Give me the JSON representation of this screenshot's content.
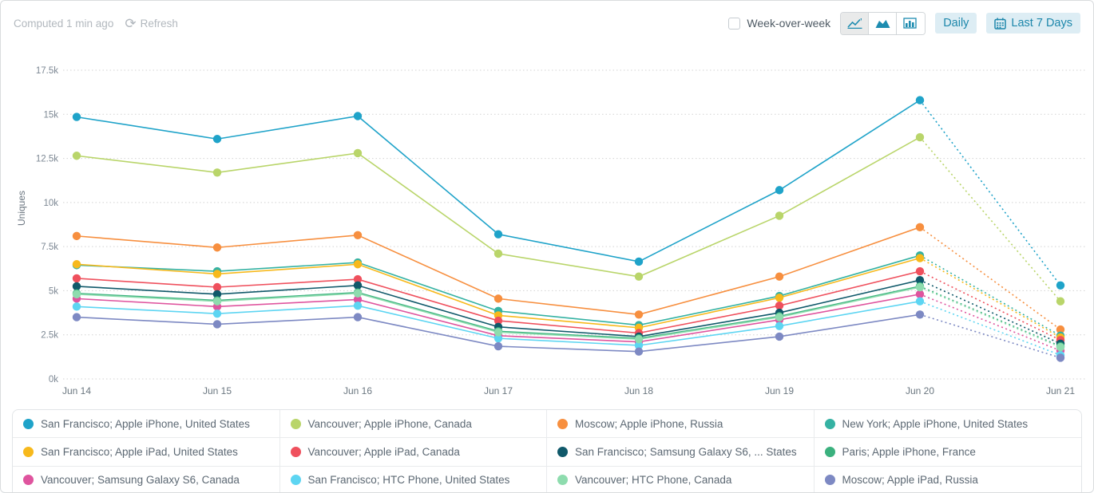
{
  "header": {
    "computed_text": "Computed 1 min ago",
    "refresh_label": "Refresh",
    "week_over_week_label": "Week-over-week",
    "daily_label": "Daily",
    "date_range_label": "Last 7 Days",
    "accent_color": "#1d87ab"
  },
  "chart_data": {
    "type": "line",
    "title": "",
    "xlabel": "",
    "ylabel": "Uniques",
    "ylim": [
      0,
      17500
    ],
    "grid": true,
    "legend_position": "bottom",
    "note": "segment from Jun 20 to Jun 21 drawn dotted (incomplete period)",
    "categories": [
      "Jun 14",
      "Jun 15",
      "Jun 16",
      "Jun 17",
      "Jun 18",
      "Jun 19",
      "Jun 20",
      "Jun 21"
    ],
    "ytick_labels": [
      "0k",
      "2.5k",
      "5k",
      "7.5k",
      "10k",
      "12.5k",
      "15k",
      "17.5k"
    ],
    "ytick_values": [
      0,
      2500,
      5000,
      7500,
      10000,
      12500,
      15000,
      17500
    ],
    "series": [
      {
        "name": "San Francisco; Apple iPhone, United States",
        "color": "#1fa3c9",
        "values": [
          14850,
          13600,
          14900,
          8200,
          6650,
          10700,
          15800,
          5300
        ]
      },
      {
        "name": "Vancouver; Apple iPhone, Canada",
        "color": "#b9d56a",
        "values": [
          12650,
          11700,
          12800,
          7100,
          5800,
          9250,
          13700,
          4400
        ]
      },
      {
        "name": "Moscow; Apple iPhone, Russia",
        "color": "#f78f3f",
        "values": [
          8100,
          7450,
          8150,
          4550,
          3650,
          5800,
          8600,
          2800
        ]
      },
      {
        "name": "New York; Apple iPhone, United States",
        "color": "#35b2a3",
        "values": [
          6450,
          6100,
          6600,
          3850,
          3050,
          4700,
          7000,
          2450
        ]
      },
      {
        "name": "San Francisco; Apple iPad, United States",
        "color": "#f7b91c",
        "values": [
          6500,
          5950,
          6500,
          3600,
          2900,
          4600,
          6850,
          2350
        ]
      },
      {
        "name": "Vancouver; Apple iPad, Canada",
        "color": "#ef505d",
        "values": [
          5700,
          5200,
          5650,
          3300,
          2600,
          4150,
          6100,
          2200
        ]
      },
      {
        "name": "San Francisco; Samsung Galaxy S6, ... States",
        "color": "#10596a",
        "values": [
          5250,
          4800,
          5300,
          2950,
          2400,
          3750,
          5600,
          2000
        ]
      },
      {
        "name": "Paris; Apple iPhone, France",
        "color": "#3bb17e",
        "values": [
          4850,
          4450,
          4900,
          2700,
          2300,
          3550,
          5250,
          1850
        ]
      },
      {
        "name": "Vancouver; Samsung Galaxy S6, Canada",
        "color": "#df549e",
        "values": [
          4550,
          4100,
          4500,
          2450,
          2100,
          3350,
          4800,
          1600
        ]
      },
      {
        "name": "San Francisco; HTC Phone, United States",
        "color": "#5dd5f2",
        "values": [
          4100,
          3700,
          4150,
          2300,
          1900,
          3000,
          4400,
          1350
        ]
      },
      {
        "name": "Vancouver; HTC Phone, Canada",
        "color": "#8edcae",
        "values": [
          4800,
          4400,
          4850,
          2650,
          2250,
          3500,
          5200,
          1800
        ]
      },
      {
        "name": "Moscow; Apple iPad, Russia",
        "color": "#7d89c3",
        "values": [
          3500,
          3100,
          3500,
          1850,
          1550,
          2400,
          3650,
          1200
        ]
      }
    ]
  }
}
